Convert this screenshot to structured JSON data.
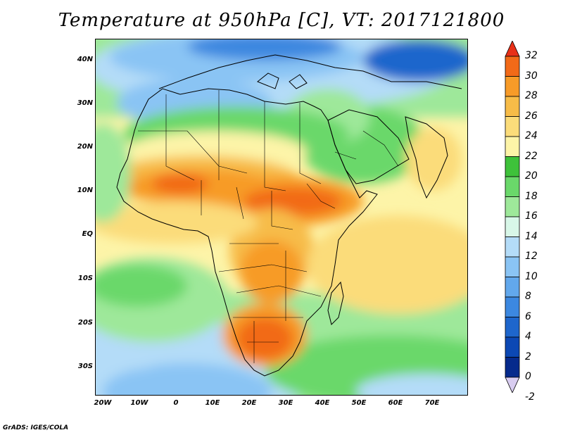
{
  "title": "Temperature at 950hPa [C], VT: 2017121800",
  "credit": "GrADS: IGES/COLA",
  "map": {
    "lat_labels": [
      "40N",
      "30N",
      "20N",
      "10N",
      "EQ",
      "10S",
      "20S",
      "30S"
    ],
    "lon_labels": [
      "20W",
      "10W",
      "0",
      "10E",
      "20E",
      "30E",
      "40E",
      "50E",
      "60E",
      "70E"
    ],
    "lon_range": [
      -22,
      80
    ],
    "lat_range": [
      -37,
      45
    ]
  },
  "colorbar": {
    "labels": [
      "32",
      "30",
      "28",
      "26",
      "24",
      "22",
      "20",
      "18",
      "16",
      "14",
      "12",
      "10",
      "8",
      "6",
      "4",
      "2",
      "0",
      "-2"
    ],
    "colors": [
      "#e83018",
      "#f26a18",
      "#f79b28",
      "#f7bc48",
      "#fbdc7a",
      "#fdf4a8",
      "#3ec23a",
      "#6ad86a",
      "#9ee89a",
      "#d8f7e8",
      "#b4dcf8",
      "#8ac4f4",
      "#62a8ec",
      "#3c88e0",
      "#1e66cc",
      "#0c48b4",
      "#062a8c",
      "#d8ccf0"
    ]
  }
}
